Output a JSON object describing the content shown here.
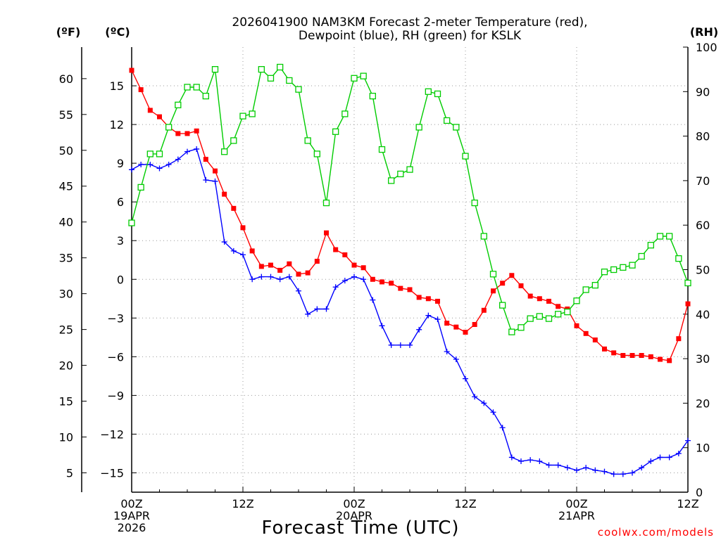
{
  "chart_data": {
    "type": "line",
    "title_line1": "2026041900 NAM3KM Forecast 2-meter Temperature (red),",
    "title_line2": "Dewpoint (blue), RH (green) for KSLK",
    "xlabel": "Forecast Time (UTC)",
    "units_f": "(ºF)",
    "units_c": "(ºC)",
    "units_rh": "(RH)",
    "credit": "coolwx.com/models",
    "x_range_hours": [
      0,
      60
    ],
    "y_range_c": [
      -16.5,
      18
    ],
    "y_range_rh": [
      0,
      100
    ],
    "c_ticks": [
      -15,
      -12,
      -9,
      -6,
      -3,
      0,
      3,
      6,
      9,
      12,
      15
    ],
    "c_tick_labels": [
      "−15",
      "−12",
      "−9",
      "−6",
      "−3",
      "0",
      "3",
      "6",
      "9",
      "12",
      "15"
    ],
    "f_ticks": [
      5,
      10,
      15,
      20,
      25,
      30,
      35,
      40,
      45,
      50,
      55,
      60
    ],
    "f_tick_labels": [
      "5",
      "10",
      "15",
      "20",
      "25",
      "30",
      "35",
      "40",
      "45",
      "50",
      "55",
      "60"
    ],
    "rh_ticks": [
      0,
      10,
      20,
      30,
      40,
      50,
      60,
      70,
      80,
      90,
      100
    ],
    "rh_tick_labels": [
      "0",
      "10",
      "20",
      "30",
      "40",
      "50",
      "60",
      "70",
      "80",
      "90",
      "100"
    ],
    "x_ticks": [
      {
        "hour": 0,
        "lines": [
          "00Z",
          "19APR",
          "2026"
        ]
      },
      {
        "hour": 12,
        "lines": [
          "12Z"
        ]
      },
      {
        "hour": 24,
        "lines": [
          "00Z",
          "20APR"
        ]
      },
      {
        "hour": 36,
        "lines": [
          "12Z"
        ]
      },
      {
        "hour": 48,
        "lines": [
          "00Z",
          "21APR"
        ]
      },
      {
        "hour": 60,
        "lines": [
          "12Z"
        ]
      }
    ],
    "series": [
      {
        "name": "Temperature",
        "axis": "C",
        "color": "#ff0000",
        "marker": "filled-square",
        "x": [
          0,
          1,
          2,
          3,
          4,
          5,
          6,
          7,
          8,
          9,
          10,
          11,
          12,
          13,
          14,
          15,
          16,
          17,
          18,
          19,
          20,
          21,
          22,
          23,
          24,
          25,
          26,
          27,
          28,
          29,
          30,
          31,
          32,
          33,
          34,
          35,
          36,
          37,
          38,
          39,
          40,
          41,
          42,
          43,
          44,
          45,
          46,
          47,
          48,
          49,
          50,
          51,
          52,
          53,
          54,
          55,
          56,
          57,
          58,
          59,
          60
        ],
        "values": [
          16.2,
          14.7,
          13.1,
          12.6,
          11.8,
          11.3,
          11.3,
          11.5,
          9.3,
          8.4,
          6.6,
          5.5,
          4.0,
          2.2,
          1.0,
          1.1,
          0.7,
          1.2,
          0.4,
          0.5,
          1.4,
          3.6,
          2.3,
          1.9,
          1.1,
          0.9,
          0.0,
          -0.2,
          -0.3,
          -0.7,
          -0.8,
          -1.4,
          -1.5,
          -1.7,
          -3.4,
          -3.7,
          -4.1,
          -3.5,
          -2.4,
          -0.9,
          -0.3,
          0.3,
          -0.5,
          -1.3,
          -1.5,
          -1.7,
          -2.1,
          -2.3,
          -3.6,
          -4.2,
          -4.7,
          -5.4,
          -5.7,
          -5.9,
          -5.9,
          -5.9,
          -6.0,
          -6.2,
          -6.3,
          -4.6,
          -1.9
        ]
      },
      {
        "name": "Dewpoint",
        "axis": "C",
        "color": "#0000ff",
        "marker": "plus",
        "x": [
          0,
          1,
          2,
          3,
          4,
          5,
          6,
          7,
          8,
          9,
          10,
          11,
          12,
          13,
          14,
          15,
          16,
          17,
          18,
          19,
          20,
          21,
          22,
          23,
          24,
          25,
          26,
          27,
          28,
          29,
          30,
          31,
          32,
          33,
          34,
          35,
          36,
          37,
          38,
          39,
          40,
          41,
          42,
          43,
          44,
          45,
          46,
          47,
          48,
          49,
          50,
          51,
          52,
          53,
          54,
          55,
          56,
          57,
          58,
          59,
          60
        ],
        "values": [
          8.5,
          8.9,
          8.9,
          8.6,
          8.9,
          9.3,
          9.9,
          10.1,
          7.7,
          7.6,
          2.9,
          2.2,
          1.9,
          0.0,
          0.2,
          0.2,
          0.0,
          0.2,
          -0.9,
          -2.7,
          -2.3,
          -2.3,
          -0.6,
          -0.1,
          0.2,
          0.0,
          -1.6,
          -3.6,
          -5.1,
          -5.1,
          -5.1,
          -3.9,
          -2.8,
          -3.1,
          -5.6,
          -6.2,
          -7.7,
          -9.1,
          -9.6,
          -10.3,
          -11.5,
          -13.8,
          -14.1,
          -14.0,
          -14.1,
          -14.4,
          -14.4,
          -14.6,
          -14.8,
          -14.6,
          -14.8,
          -14.9,
          -15.1,
          -15.1,
          -15.0,
          -14.6,
          -14.1,
          -13.8,
          -13.8,
          -13.5,
          -12.5
        ]
      },
      {
        "name": "RH",
        "axis": "RH",
        "color": "#00cc00",
        "marker": "open-square",
        "x": [
          0,
          1,
          2,
          3,
          4,
          5,
          6,
          7,
          8,
          9,
          10,
          11,
          12,
          13,
          14,
          15,
          16,
          17,
          18,
          19,
          20,
          21,
          22,
          23,
          24,
          25,
          26,
          27,
          28,
          29,
          30,
          31,
          32,
          33,
          34,
          35,
          36,
          37,
          38,
          39,
          40,
          41,
          42,
          43,
          44,
          45,
          46,
          47,
          48,
          49,
          50,
          51,
          52,
          53,
          54,
          55,
          56,
          57,
          58,
          59,
          60
        ],
        "values": [
          60.5,
          68.5,
          76,
          76,
          82,
          87,
          91,
          91,
          89,
          95,
          76.5,
          79,
          84.5,
          85,
          95,
          93,
          95.5,
          92.5,
          90.5,
          79,
          76,
          65,
          81,
          85,
          93,
          93.5,
          89,
          77,
          70,
          71.5,
          72.5,
          82,
          90,
          89.5,
          83.5,
          82,
          75.5,
          65,
          57.5,
          49,
          42,
          36,
          37,
          39,
          39.5,
          39,
          40,
          40.5,
          43,
          45.5,
          46.5,
          49.5,
          50,
          50.5,
          51,
          53,
          55.5,
          57.5,
          57.5,
          52.5,
          47
        ]
      }
    ]
  }
}
